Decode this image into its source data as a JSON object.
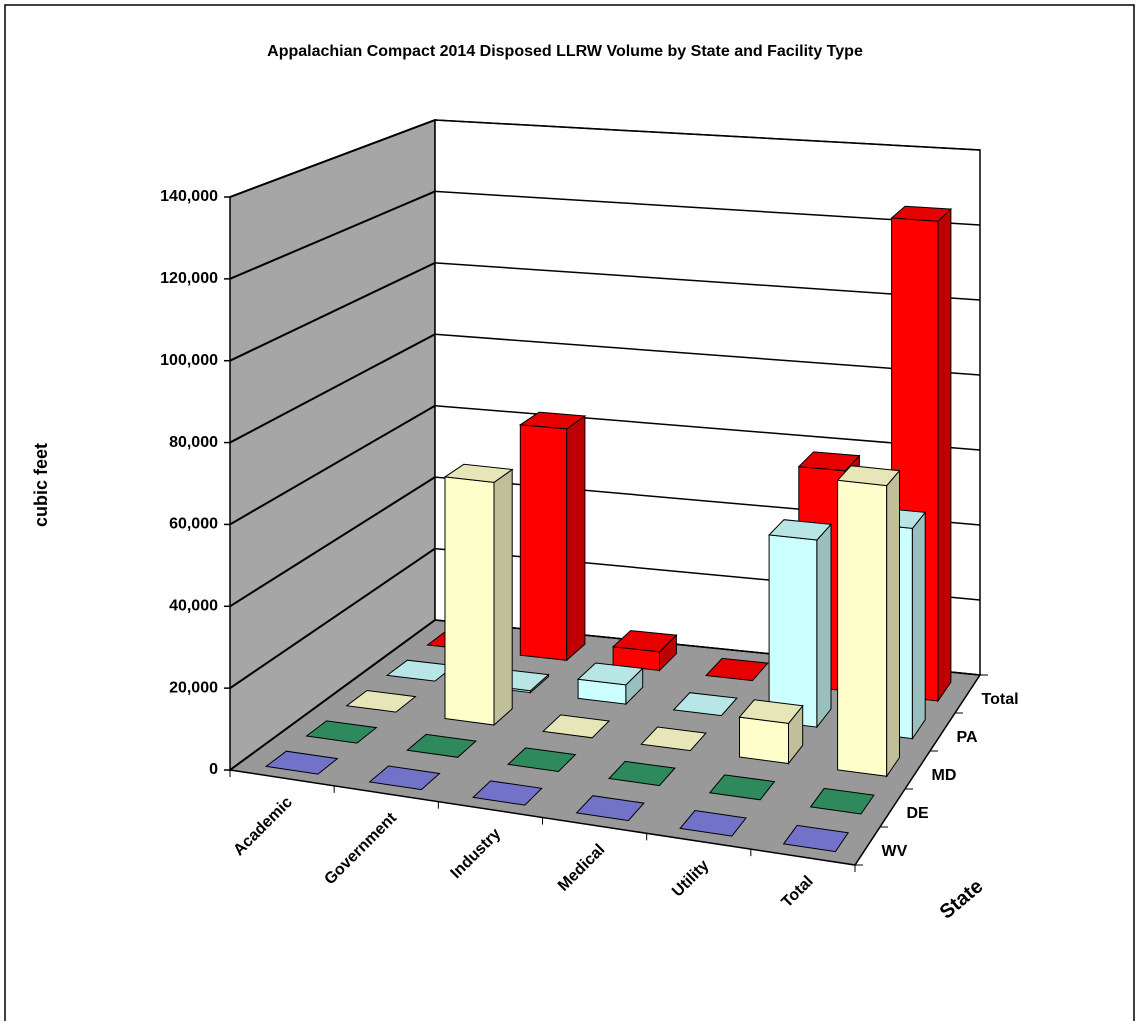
{
  "chart_data": {
    "type": "bar3d",
    "title": "Appalachian Compact 2014 Disposed  LLRW  Volume by State and Facility Type",
    "ylabel": "cubic feet",
    "zlabel": "State",
    "categories": [
      "Academic",
      "Government",
      "Industry",
      "Medical",
      "Utility",
      "Total"
    ],
    "series": [
      {
        "name": "WV",
        "color": "#7f7fdf",
        "values": [
          0,
          0,
          0,
          0,
          0,
          0
        ]
      },
      {
        "name": "DE",
        "color": "#339966",
        "values": [
          0,
          0,
          0,
          0,
          0,
          0
        ]
      },
      {
        "name": "MD",
        "color": "#ffffcc",
        "values": [
          0,
          62000,
          0,
          0,
          10000,
          72000
        ]
      },
      {
        "name": "PA",
        "color": "#ccffff",
        "values": [
          0,
          500,
          5000,
          0,
          48000,
          53500
        ]
      },
      {
        "name": "Total",
        "color": "#ff0000",
        "values": [
          0,
          62500,
          5000,
          0,
          58000,
          125500
        ]
      }
    ],
    "ylim": [
      0,
      140000
    ],
    "yticks": [
      0,
      {
        "value": 20000,
        "label": "20,000"
      },
      {
        "value": 40000,
        "label": "40,000"
      },
      {
        "value": 60000,
        "label": "60,000"
      },
      {
        "value": 80000,
        "label": "80,000"
      },
      {
        "value": 100000,
        "label": "100,000"
      },
      {
        "value": 120000,
        "label": "120,000"
      },
      {
        "value": 140000,
        "label": "140,000"
      }
    ],
    "grid": true
  }
}
